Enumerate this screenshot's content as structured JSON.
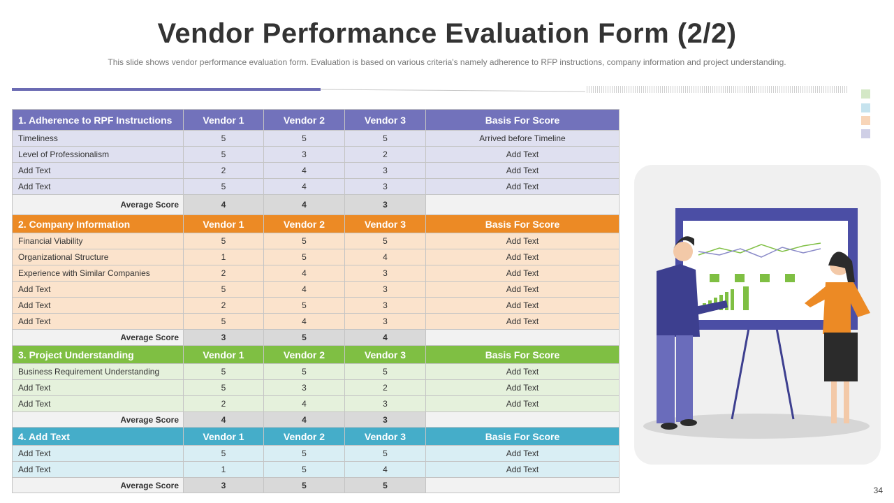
{
  "header": {
    "title": "Vendor Performance Evaluation Form (2/2)",
    "subtitle": "This slide shows vendor performance  evaluation form. Evaluation  is based on various  criteria's namely adherence to RFP instructions, company information  and project understanding."
  },
  "sections": [
    {
      "columns": [
        "1. Adherence to RPF Instructions",
        "Vendor 1",
        "Vendor 2",
        "Vendor 3",
        "Basis For Score"
      ],
      "rows": [
        [
          "Timeliness",
          5,
          5,
          5,
          "Arrived before Timeline"
        ],
        [
          "Level of Professionalism",
          5,
          3,
          2,
          "Add Text"
        ],
        [
          "Add Text",
          2,
          4,
          3,
          "Add Text"
        ],
        [
          "Add Text",
          5,
          4,
          3,
          "Add Text"
        ]
      ],
      "average": {
        "label": "Average Score",
        "scores": [
          4,
          4,
          3
        ]
      }
    },
    {
      "columns": [
        "2. Company Information",
        "Vendor 1",
        "Vendor 2",
        "Vendor 3",
        "Basis For Score"
      ],
      "rows": [
        [
          "Financial Viability",
          5,
          5,
          5,
          "Add Text"
        ],
        [
          "Organizational Structure",
          1,
          5,
          4,
          "Add Text"
        ],
        [
          "Experience with Similar Companies",
          2,
          4,
          3,
          "Add Text"
        ],
        [
          "Add Text",
          5,
          4,
          3,
          "Add Text"
        ],
        [
          "Add Text",
          2,
          5,
          3,
          "Add Text"
        ],
        [
          "Add Text",
          5,
          4,
          3,
          "Add Text"
        ]
      ],
      "average": {
        "label": "Average Score",
        "scores": [
          3,
          5,
          4
        ]
      }
    },
    {
      "columns": [
        "3. Project Understanding",
        "Vendor 1",
        "Vendor 2",
        "Vendor 3",
        "Basis For Score"
      ],
      "rows": [
        [
          "Business Requirement Understanding",
          5,
          5,
          5,
          "Add Text"
        ],
        [
          "Add Text",
          5,
          3,
          2,
          "Add Text"
        ],
        [
          "Add Text",
          2,
          4,
          3,
          "Add Text"
        ]
      ],
      "average": {
        "label": "Average Score",
        "scores": [
          4,
          4,
          3
        ]
      }
    },
    {
      "columns": [
        "4. Add Text",
        "Vendor 1",
        "Vendor 2",
        "Vendor 3",
        "Basis For Score"
      ],
      "rows": [
        [
          "Add Text",
          5,
          5,
          5,
          "Add Text"
        ],
        [
          "Add Text",
          1,
          5,
          4,
          "Add Text"
        ]
      ],
      "average": {
        "label": "Average Score",
        "scores": [
          3,
          5,
          5
        ]
      }
    }
  ],
  "page_number": "34"
}
